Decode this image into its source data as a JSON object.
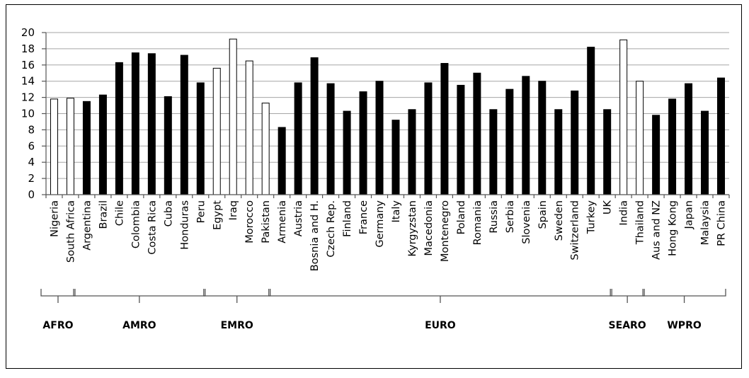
{
  "chart_data": {
    "type": "bar",
    "title": "",
    "xlabel": "",
    "ylabel": "",
    "ylim": [
      0,
      20
    ],
    "yticks": [
      0,
      2,
      4,
      6,
      8,
      10,
      12,
      14,
      16,
      18,
      20
    ],
    "grid": true,
    "colors": {
      "open": "#ffffff",
      "filled": "#000000"
    },
    "categories": [
      "Nigeria",
      "South Africa",
      "Argentina",
      "Brazil",
      "Chile",
      "Colombia",
      "Costa Rica",
      "Cuba",
      "Honduras",
      "Peru",
      "Egypt",
      "Iraq",
      "Morocco",
      "Pakistan",
      "Armenia",
      "Austria",
      "Bosnia and H.",
      "Czech Rep.",
      "Finland",
      "France",
      "Germany",
      "Italy",
      "Kyrgyzstan",
      "Macedonia",
      "Montenegro",
      "Poland",
      "Romania",
      "Russia",
      "Serbia",
      "Slovenia",
      "Spain",
      "Sweden",
      "Switzerland",
      "Turkey",
      "UK",
      "India",
      "Thailand",
      "Aus and NZ",
      "Hong Kong",
      "Japan",
      "Malaysia",
      "PR China"
    ],
    "values": [
      11.8,
      11.9,
      11.5,
      12.3,
      16.3,
      17.5,
      17.4,
      12.1,
      17.2,
      13.8,
      15.6,
      19.2,
      16.5,
      11.3,
      8.3,
      13.8,
      16.9,
      13.7,
      10.3,
      12.7,
      14.0,
      9.2,
      10.5,
      13.8,
      16.2,
      13.5,
      15.0,
      10.5,
      13.0,
      14.6,
      14.0,
      10.5,
      12.8,
      18.2,
      10.5,
      19.1,
      14.0,
      9.8,
      11.8,
      13.7,
      10.3,
      14.4
    ],
    "fill": [
      "open",
      "open",
      "filled",
      "filled",
      "filled",
      "filled",
      "filled",
      "filled",
      "filled",
      "filled",
      "open",
      "open",
      "open",
      "open",
      "filled",
      "filled",
      "filled",
      "filled",
      "filled",
      "filled",
      "filled",
      "filled",
      "filled",
      "filled",
      "filled",
      "filled",
      "filled",
      "filled",
      "filled",
      "filled",
      "filled",
      "filled",
      "filled",
      "filled",
      "filled",
      "open",
      "open",
      "filled",
      "filled",
      "filled",
      "filled",
      "filled"
    ],
    "regions": [
      {
        "name": "AFRO",
        "start": 0,
        "end": 1
      },
      {
        "name": "AMRO",
        "start": 2,
        "end": 9
      },
      {
        "name": "EMRO",
        "start": 10,
        "end": 13
      },
      {
        "name": "EURO",
        "start": 14,
        "end": 34
      },
      {
        "name": "SEARO",
        "start": 35,
        "end": 36
      },
      {
        "name": "WPRO",
        "start": 37,
        "end": 41
      }
    ]
  }
}
